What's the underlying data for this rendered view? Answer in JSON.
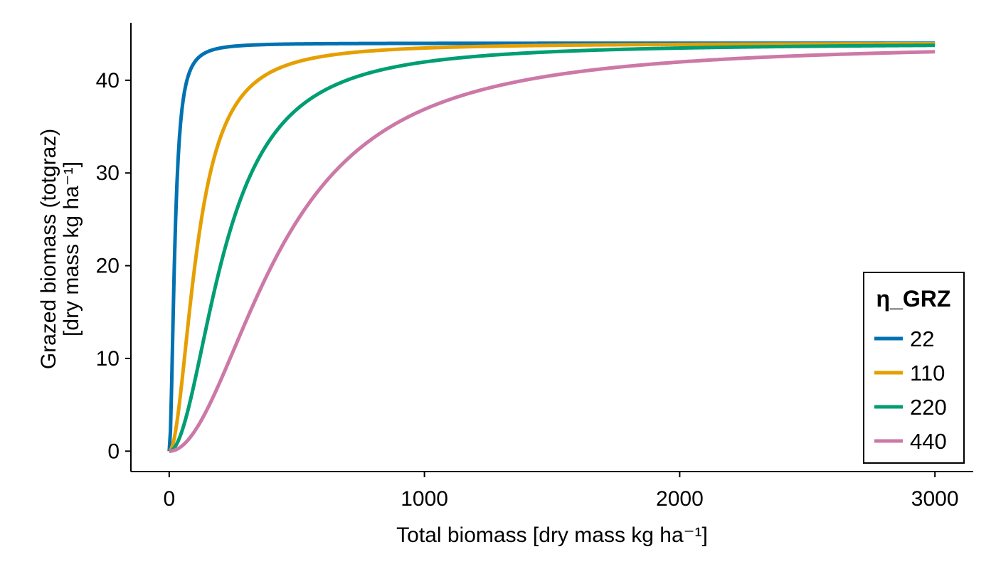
{
  "chart_data": {
    "type": "line",
    "title": "",
    "xlabel": "Total biomass [dry mass kg ha⁻¹]",
    "ylabel_lines": [
      "Grazed biomass (totgraz)",
      "[dry mass kg ha⁻¹]"
    ],
    "xlim": [
      -150,
      3150
    ],
    "ylim": [
      -2.2,
      46.2
    ],
    "x_ticks": [
      0,
      1000,
      2000,
      3000
    ],
    "x_tick_labels": [
      "0",
      "1000",
      "2000",
      "3000"
    ],
    "y_ticks": [
      0,
      10,
      20,
      30,
      40
    ],
    "y_tick_labels": [
      "0",
      "10",
      "20",
      "30",
      "40"
    ],
    "grid": false,
    "legend": {
      "title": "η_GRZ",
      "position": "bottom-right"
    },
    "max_graz": 44,
    "x_range": [
      0,
      3000
    ],
    "series": [
      {
        "name": "22",
        "eta": 22,
        "color": "#0072B2"
      },
      {
        "name": "110",
        "eta": 110,
        "color": "#E69F00"
      },
      {
        "name": "220",
        "eta": 220,
        "color": "#009E73"
      },
      {
        "name": "440",
        "eta": 440,
        "color": "#CC79A7"
      }
    ]
  }
}
